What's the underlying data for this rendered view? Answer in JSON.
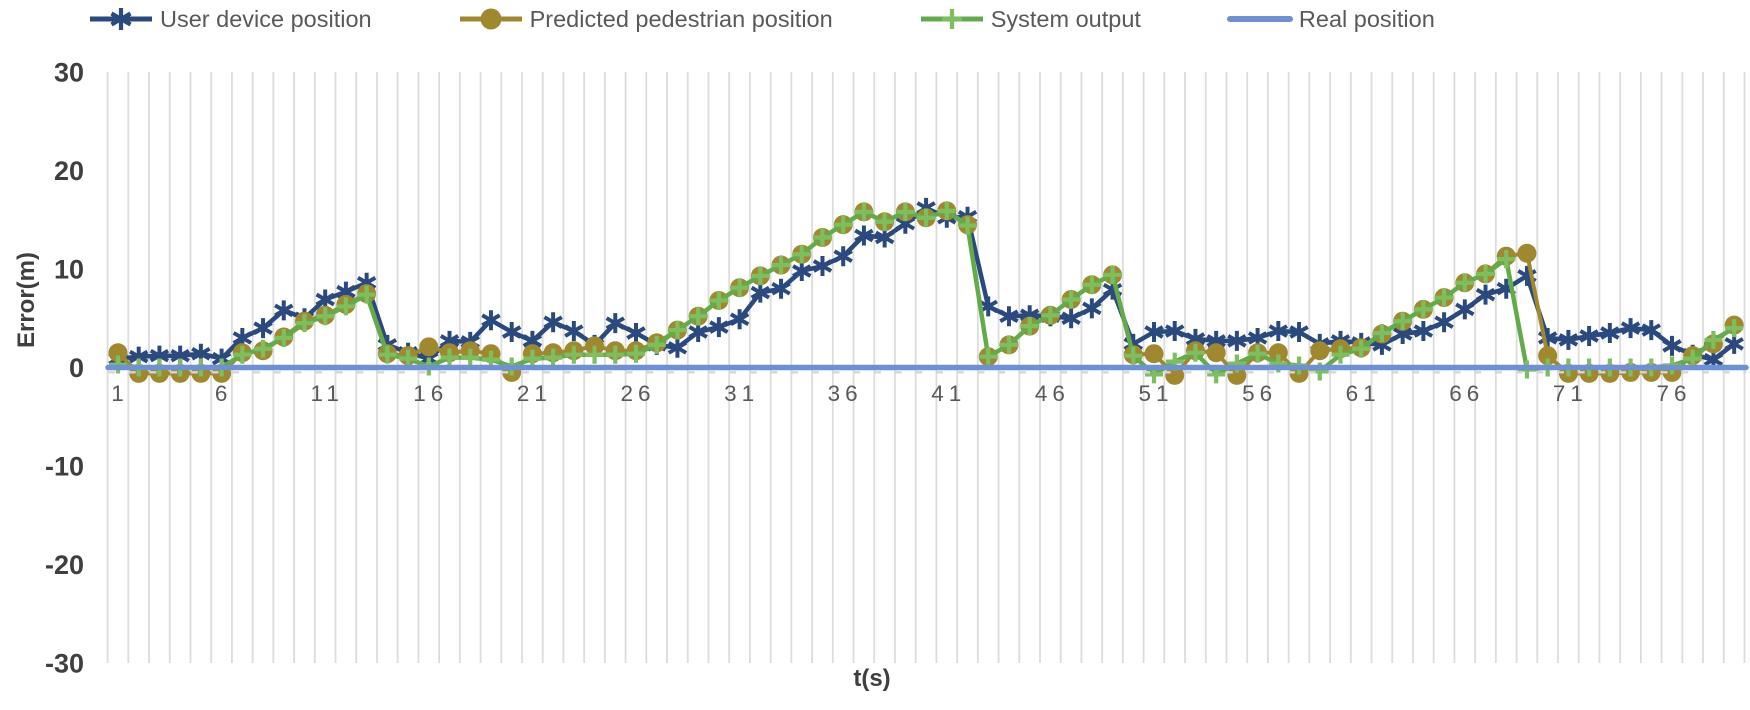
{
  "chart_data": {
    "type": "line",
    "title": "",
    "x_label": "t(s)",
    "y_label": "Error(m)",
    "x_range": [
      1,
      79
    ],
    "y_range": [
      -30,
      30
    ],
    "x_ticks": [
      1,
      6,
      11,
      16,
      21,
      26,
      31,
      36,
      41,
      46,
      51,
      56,
      61,
      66,
      71,
      76
    ],
    "y_ticks": [
      30,
      20,
      10,
      0,
      -10,
      -20,
      -30
    ],
    "grid": "vertical-only",
    "gridline_color": "#DCDCDC",
    "axis_dash_color": "#D6D6D6",
    "tick_label_color": "#595959",
    "axis_title_color": "#3F3F3F",
    "legend_position": "top",
    "series": [
      {
        "name": "User device position",
        "color": "#2A4A7F",
        "marker": "asterisk",
        "marker_color": "#2A4A7F",
        "line_width": 4.5,
        "values": [
          0.9,
          1.1,
          1.2,
          1.2,
          1.4,
          0.9,
          3.0,
          4.0,
          5.8,
          5.0,
          6.9,
          7.7,
          8.6,
          2.3,
          1.5,
          0.9,
          2.7,
          2.6,
          4.8,
          3.6,
          2.7,
          4.6,
          3.7,
          2.3,
          4.5,
          3.5,
          2.3,
          2.0,
          3.6,
          4.1,
          4.9,
          7.6,
          8.0,
          9.8,
          10.3,
          11.3,
          13.4,
          13.2,
          14.6,
          16.2,
          15.2,
          15.3,
          6.2,
          5.2,
          5.3,
          5.2,
          5.0,
          6.0,
          7.9,
          2.4,
          3.6,
          3.7,
          2.9,
          2.7,
          2.7,
          3.0,
          3.7,
          3.6,
          2.4,
          2.7,
          2.5,
          2.3,
          3.4,
          3.7,
          4.6,
          5.9,
          7.4,
          8.0,
          9.3,
          3.0,
          2.8,
          3.2,
          3.5,
          4.0,
          3.8,
          2.2,
          1.3,
          0.8,
          2.4
        ]
      },
      {
        "name": "Predicted pedestrian position",
        "color": "#9F882E",
        "marker": "circle",
        "marker_color": "#9F882E",
        "line_width": 4,
        "values": [
          1.5,
          -0.6,
          -0.6,
          -0.6,
          -0.6,
          -0.6,
          1.5,
          1.7,
          3.1,
          4.7,
          5.3,
          6.4,
          7.5,
          1.4,
          1.2,
          2.1,
          1.5,
          1.7,
          1.4,
          -0.5,
          1.4,
          1.5,
          1.7,
          2.2,
          1.7,
          1.7,
          2.5,
          3.8,
          5.2,
          6.8,
          8.1,
          9.3,
          10.4,
          11.5,
          13.2,
          14.5,
          15.8,
          14.8,
          15.8,
          15.2,
          15.9,
          14.5,
          1.1,
          2.3,
          4.2,
          5.3,
          6.9,
          8.4,
          9.4,
          1.3,
          1.4,
          -0.8,
          1.7,
          1.5,
          -0.8,
          1.5,
          1.5,
          -0.6,
          1.7,
          1.9,
          2.0,
          3.4,
          4.7,
          5.9,
          7.1,
          8.6,
          9.5,
          11.3,
          11.6,
          1.2,
          -0.6,
          -0.6,
          -0.6,
          -0.5,
          -0.5,
          -0.5,
          1.2,
          2.4,
          4.3
        ]
      },
      {
        "name": "System output",
        "color": "#63AB48",
        "marker": "plus",
        "marker_color": "#7EBE5E",
        "line_width": 4.5,
        "values": [
          0.3,
          0.0,
          0.0,
          0.0,
          0.0,
          0.0,
          1.3,
          1.9,
          3.0,
          4.5,
          5.2,
          6.2,
          7.4,
          1.3,
          0.9,
          0.1,
          1.0,
          1.0,
          0.8,
          0.1,
          0.9,
          1.0,
          1.3,
          1.3,
          1.3,
          1.4,
          2.3,
          3.8,
          5.2,
          6.8,
          8.1,
          9.3,
          10.4,
          11.5,
          13.2,
          14.5,
          15.8,
          14.8,
          15.8,
          15.2,
          15.9,
          14.4,
          1.1,
          2.3,
          4.2,
          5.3,
          6.9,
          8.4,
          9.4,
          1.2,
          -0.7,
          0.6,
          1.5,
          -0.7,
          0.4,
          1.4,
          0.4,
          0.2,
          -0.4,
          1.3,
          1.9,
          3.5,
          4.7,
          5.9,
          7.1,
          8.6,
          9.5,
          11.0,
          -0.2,
          0.0,
          0.0,
          0.0,
          0.0,
          0.0,
          0.0,
          0.2,
          0.9,
          2.8,
          4.0
        ]
      },
      {
        "name": "Real position",
        "color": "#6E90D4",
        "marker": "none",
        "marker_color": "#6E90D4",
        "line_width": 5.5,
        "constant_value": 0
      }
    ]
  }
}
